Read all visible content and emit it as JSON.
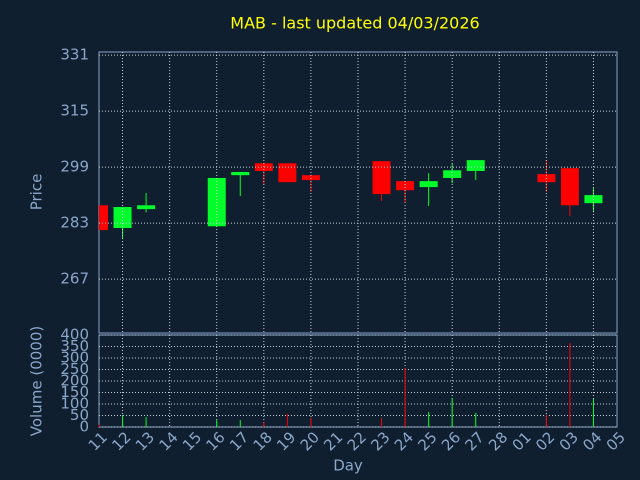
{
  "chart_data": {
    "type": "candlestick",
    "title": "MAB - last updated 04/03/2026",
    "y_label": "Price",
    "x_label": "Day",
    "categories": [
      "11",
      "12",
      "13",
      "14",
      "15",
      "16",
      "17",
      "18",
      "19",
      "20",
      "21",
      "22",
      "23",
      "24",
      "25",
      "26",
      "27",
      "28",
      "01",
      "02",
      "03",
      "04",
      "05"
    ],
    "open": [
      288.1,
      281.6,
      287.0,
      null,
      null,
      282.1,
      296.7,
      300.1,
      300.1,
      296.7,
      null,
      null,
      300.7,
      295.0,
      293.3,
      295.9,
      297.9,
      null,
      null,
      297.0,
      298.7,
      288.7,
      null
    ],
    "high": [
      288.1,
      287.6,
      291.6,
      null,
      null,
      295.9,
      297.6,
      300.1,
      300.1,
      296.7,
      null,
      null,
      300.7,
      295.0,
      297.3,
      300.1,
      301.0,
      null,
      null,
      301.0,
      298.7,
      293.0,
      null
    ],
    "low": [
      281.0,
      278.7,
      286.1,
      null,
      null,
      282.1,
      290.7,
      293.9,
      294.7,
      291.9,
      null,
      null,
      289.3,
      289.0,
      287.9,
      294.4,
      295.3,
      null,
      null,
      291.9,
      285.0,
      286.1,
      null
    ],
    "close": [
      281.0,
      287.6,
      288.1,
      null,
      null,
      295.9,
      297.6,
      297.9,
      294.7,
      295.3,
      null,
      null,
      291.3,
      292.4,
      295.0,
      298.1,
      301.0,
      null,
      null,
      294.7,
      288.1,
      291.0,
      null
    ],
    "up_color": "#00ff2a",
    "down_color": "#ff0000",
    "ylim": [
      251.6,
      331.9
    ],
    "yticks": [
      267,
      283,
      299,
      315,
      331
    ],
    "grid": true,
    "volume": {
      "label": "Volume (0000)",
      "values": [
        10,
        52,
        43,
        null,
        null,
        30,
        30,
        20,
        57,
        39,
        null,
        null,
        39,
        257,
        65,
        126,
        61,
        null,
        null,
        52,
        365,
        122,
        null
      ],
      "ylim": [
        0,
        400
      ],
      "yticks": [
        0,
        50,
        100,
        150,
        200,
        250,
        300,
        350,
        400
      ]
    }
  }
}
